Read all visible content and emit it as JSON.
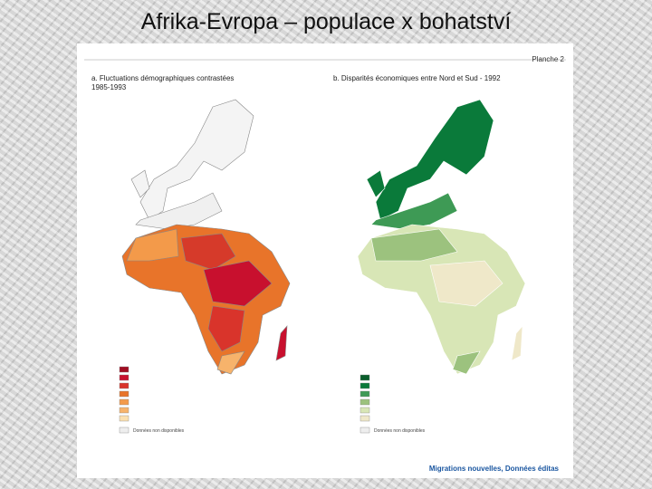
{
  "header": {
    "title": "Afrika-Evropa – populace x bohatství"
  },
  "panel": {
    "plate": "Planche 2",
    "map_a": {
      "title": "a. Fluctuations démographiques contrastées",
      "period": "1985-1993",
      "no_data": "Données non disponibles"
    },
    "map_b": {
      "title": "b. Disparités économiques entre Nord et Sud - 1992",
      "no_data": "Données non disponibles"
    },
    "footer": "Migrations nouvelles, Données éditas"
  }
}
